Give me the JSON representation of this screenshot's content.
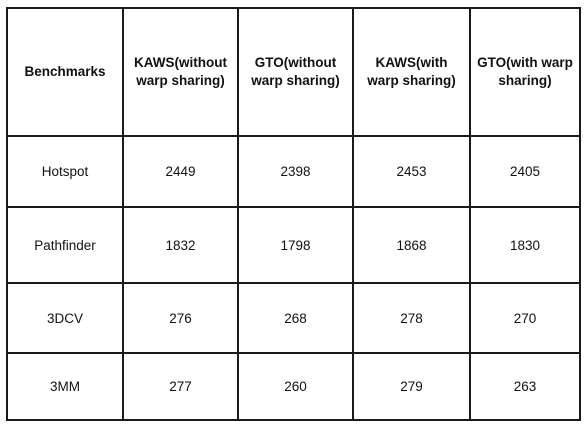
{
  "table": {
    "headers": [
      "Benchmarks",
      "KAWS(without warp sharing)",
      "GTO(without warp sharing)",
      "KAWS(with warp sharing)",
      "GTO(with warp sharing)"
    ],
    "rows": [
      [
        "Hotspot",
        "2449",
        "2398",
        "2453",
        "2405"
      ],
      [
        "Pathfinder",
        "1832",
        "1798",
        "1868",
        "1830"
      ],
      [
        "3DCV",
        "276",
        "268",
        "278",
        "270"
      ],
      [
        "3MM",
        "277",
        "260",
        "279",
        "263"
      ]
    ]
  }
}
